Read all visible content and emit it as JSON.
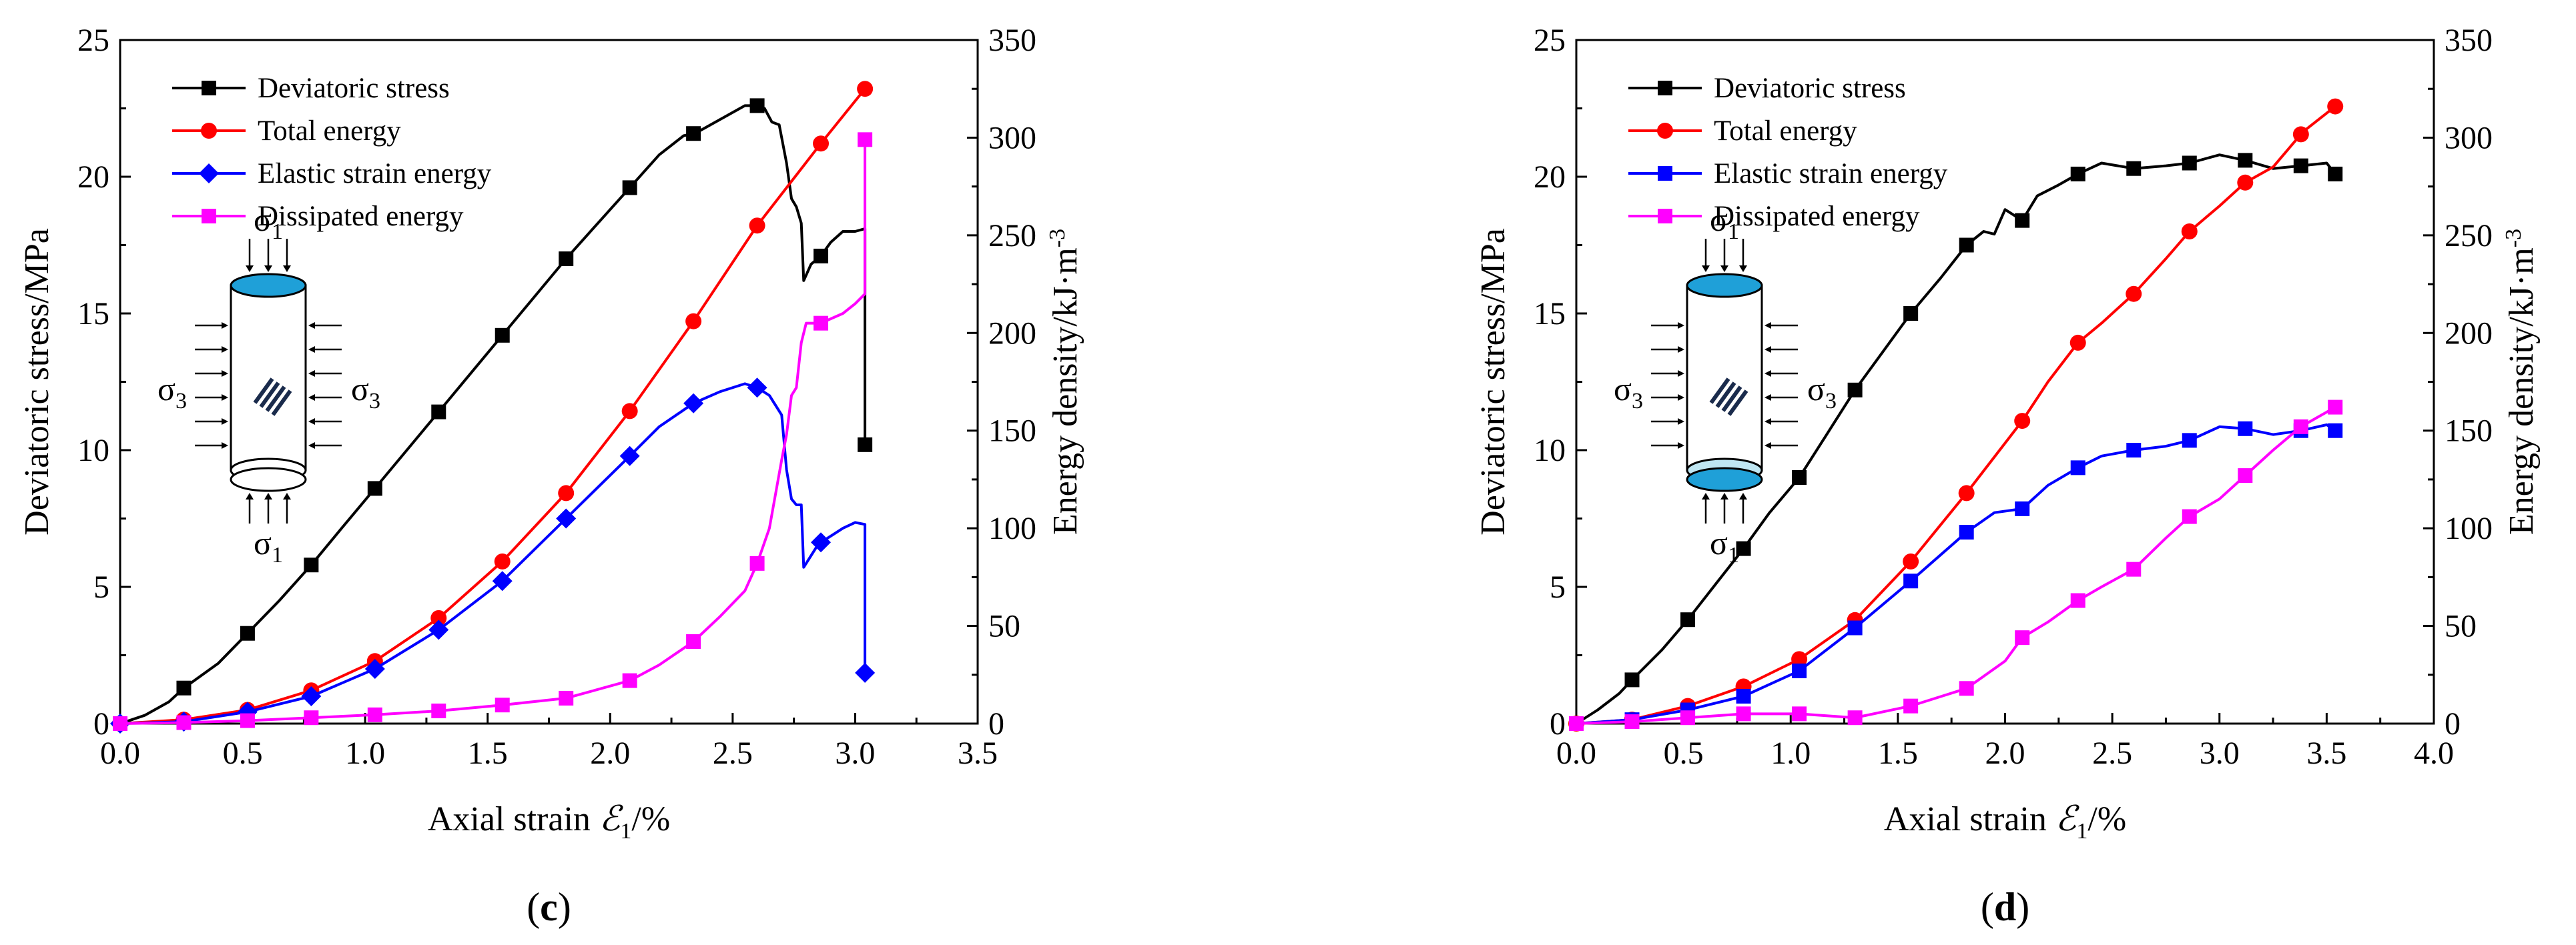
{
  "chart_data": [
    {
      "panel": "c",
      "panel_label_open": "(",
      "panel_label": "c",
      "panel_label_close": ")",
      "type": "line",
      "xlabel_prefix": "Axial strain ",
      "xlabel_symbol": "ℰ",
      "xlabel_sub": "1",
      "xlabel_suffix": "/%",
      "ylabel_left": "Deviatoric stress/MPa",
      "ylabel_right_prefix": "Energy density/kJ·m",
      "ylabel_right_sup": "-3",
      "xlim": [
        0,
        3.5
      ],
      "xticks": [
        "0.0",
        "0.5",
        "1.0",
        "1.5",
        "2.0",
        "2.5",
        "3.0",
        "3.5"
      ],
      "ylim_left": [
        0,
        25
      ],
      "yticks_left": [
        "0",
        "5",
        "10",
        "15",
        "20",
        "25"
      ],
      "ylim_right": [
        0,
        350
      ],
      "yticks_right": [
        "0",
        "50",
        "100",
        "150",
        "200",
        "250",
        "300",
        "350"
      ],
      "specimen": {
        "s1_top": "σ",
        "s1_top_sub": "1",
        "s3_left": "σ",
        "s3_left_sub": "3",
        "s3_right": "σ",
        "s3_right_sub": "3",
        "s1_bottom": "σ",
        "s1_bottom_sub": "1"
      },
      "series": [
        {
          "name": "Deviatoric stress",
          "axis": "left",
          "color": "#000000",
          "marker": "square",
          "x": [
            0,
            0.1,
            0.2,
            0.26,
            0.4,
            0.52,
            0.65,
            0.78,
            0.9,
            1.04,
            1.17,
            1.3,
            1.43,
            1.56,
            1.69,
            1.82,
            1.95,
            2.08,
            2.2,
            2.3,
            2.35,
            2.45,
            2.55,
            2.6,
            2.63,
            2.66,
            2.69,
            2.72,
            2.74,
            2.76,
            2.78,
            2.79,
            2.82,
            2.86,
            2.9,
            2.95,
            3.0,
            3.04,
            3.04
          ],
          "y": [
            0,
            0.3,
            0.8,
            1.3,
            2.2,
            3.3,
            4.5,
            5.8,
            7.1,
            8.6,
            10.0,
            11.4,
            12.8,
            14.2,
            15.6,
            17.0,
            18.3,
            19.6,
            20.8,
            21.5,
            21.6,
            22.1,
            22.6,
            22.6,
            22.5,
            22.0,
            21.9,
            20.5,
            19.2,
            18.9,
            18.3,
            16.2,
            16.8,
            17.1,
            17.6,
            18.0,
            18.0,
            18.1,
            10.2
          ]
        },
        {
          "name": "Total energy",
          "axis": "right",
          "color": "#ff0000",
          "marker": "circle",
          "x": [
            0,
            0.26,
            0.52,
            0.78,
            1.04,
            1.3,
            1.56,
            1.82,
            2.08,
            2.34,
            2.6,
            2.86,
            3.04
          ],
          "y": [
            0,
            2,
            7,
            17,
            32,
            54,
            83,
            118,
            160,
            206,
            255,
            297,
            325
          ]
        },
        {
          "name": "Elastic strain energy",
          "axis": "right",
          "color": "#0000ff",
          "marker": "diamond",
          "x": [
            0,
            0.26,
            0.52,
            0.78,
            1.04,
            1.3,
            1.56,
            1.82,
            2.08,
            2.2,
            2.34,
            2.45,
            2.55,
            2.6,
            2.65,
            2.7,
            2.72,
            2.74,
            2.76,
            2.78,
            2.79,
            2.85,
            2.9,
            2.95,
            3.0,
            3.04,
            3.04
          ],
          "y": [
            0,
            1,
            6,
            14,
            28,
            48,
            73,
            105,
            137,
            152,
            164,
            170,
            174,
            172,
            168,
            158,
            130,
            115,
            112,
            112,
            80,
            92,
            96,
            100,
            103,
            102,
            26
          ]
        },
        {
          "name": "Dissipated energy",
          "axis": "right",
          "color": "#ff00ff",
          "marker": "square",
          "x": [
            0,
            0.26,
            0.52,
            0.78,
            1.04,
            1.3,
            1.56,
            1.82,
            2.08,
            2.2,
            2.34,
            2.45,
            2.55,
            2.6,
            2.65,
            2.7,
            2.72,
            2.74,
            2.76,
            2.78,
            2.8,
            2.86,
            2.95,
            3.0,
            3.04,
            3.04
          ],
          "y": [
            0,
            0.5,
            1.5,
            3,
            4.5,
            6.5,
            9.5,
            13,
            22,
            30,
            42,
            55,
            68,
            82,
            100,
            135,
            148,
            168,
            172,
            195,
            205,
            205,
            210,
            215,
            220,
            299
          ]
        }
      ]
    },
    {
      "panel": "d",
      "panel_label_open": "(",
      "panel_label": "d",
      "panel_label_close": ")",
      "type": "line",
      "xlabel_prefix": "Axial strain ",
      "xlabel_symbol": "ℰ",
      "xlabel_sub": "1",
      "xlabel_suffix": "/%",
      "ylabel_left": "Deviatoric stress/MPa",
      "ylabel_right_prefix": "Energy density/kJ·m",
      "ylabel_right_sup": "-3",
      "xlim": [
        0,
        4.0
      ],
      "xticks": [
        "0.0",
        "0.5",
        "1.0",
        "1.5",
        "2.0",
        "2.5",
        "3.0",
        "3.5",
        "4.0"
      ],
      "ylim_left": [
        0,
        25
      ],
      "yticks_left": [
        "0",
        "5",
        "10",
        "15",
        "20",
        "25"
      ],
      "ylim_right": [
        0,
        350
      ],
      "yticks_right": [
        "0",
        "50",
        "100",
        "150",
        "200",
        "250",
        "300",
        "350"
      ],
      "specimen": {
        "s1_top": "σ",
        "s1_top_sub": "1",
        "s3_left": "σ",
        "s3_left_sub": "3",
        "s3_right": "σ",
        "s3_right_sub": "3",
        "s1_bottom": "σ",
        "s1_bottom_sub": "1"
      },
      "series": [
        {
          "name": "Deviatoric stress",
          "axis": "left",
          "color": "#000000",
          "marker": "square",
          "x": [
            0,
            0.1,
            0.2,
            0.26,
            0.4,
            0.52,
            0.65,
            0.78,
            0.9,
            1.04,
            1.17,
            1.3,
            1.43,
            1.56,
            1.7,
            1.82,
            1.9,
            1.95,
            2.0,
            2.08,
            2.15,
            2.25,
            2.34,
            2.45,
            2.6,
            2.75,
            2.86,
            3.0,
            3.12,
            3.25,
            3.38,
            3.5,
            3.54
          ],
          "y": [
            0,
            0.5,
            1.1,
            1.6,
            2.7,
            3.8,
            5.1,
            6.4,
            7.7,
            9.0,
            10.6,
            12.2,
            13.6,
            15.0,
            16.3,
            17.5,
            18.0,
            17.9,
            18.8,
            18.4,
            19.3,
            19.7,
            20.1,
            20.5,
            20.3,
            20.4,
            20.5,
            20.8,
            20.6,
            20.3,
            20.4,
            20.5,
            20.1
          ]
        },
        {
          "name": "Total energy",
          "axis": "right",
          "color": "#ff0000",
          "marker": "circle",
          "x": [
            0,
            0.26,
            0.52,
            0.78,
            1.04,
            1.3,
            1.56,
            1.82,
            2.08,
            2.2,
            2.34,
            2.45,
            2.6,
            2.75,
            2.86,
            3.0,
            3.12,
            3.25,
            3.39,
            3.54
          ],
          "y": [
            0,
            2,
            9,
            19,
            33,
            53,
            83,
            118,
            155,
            175,
            195,
            205,
            220,
            238,
            252,
            265,
            277,
            285,
            303,
            316
          ]
        },
        {
          "name": "Elastic strain energy",
          "axis": "right",
          "color": "#0000ff",
          "marker": "square",
          "x": [
            0,
            0.26,
            0.52,
            0.78,
            1.04,
            1.3,
            1.56,
            1.82,
            1.95,
            2.08,
            2.2,
            2.34,
            2.45,
            2.6,
            2.75,
            2.86,
            3.0,
            3.12,
            3.25,
            3.38,
            3.5,
            3.54
          ],
          "y": [
            0,
            2,
            7,
            14,
            27,
            49,
            73,
            98,
            108,
            110,
            122,
            131,
            137,
            140,
            142,
            145,
            152,
            151,
            148,
            150,
            153,
            150
          ]
        },
        {
          "name": "Dissipated energy",
          "axis": "right",
          "color": "#ff00ff",
          "marker": "square",
          "x": [
            0,
            0.26,
            0.52,
            0.78,
            1.04,
            1.3,
            1.56,
            1.82,
            2.0,
            2.08,
            2.2,
            2.34,
            2.45,
            2.6,
            2.75,
            2.86,
            3.0,
            3.12,
            3.25,
            3.38,
            3.54
          ],
          "y": [
            0,
            1,
            3,
            5,
            5,
            3,
            9,
            18,
            32,
            44,
            52,
            63,
            70,
            79,
            95,
            106,
            115,
            127,
            140,
            152,
            162
          ]
        }
      ]
    }
  ]
}
